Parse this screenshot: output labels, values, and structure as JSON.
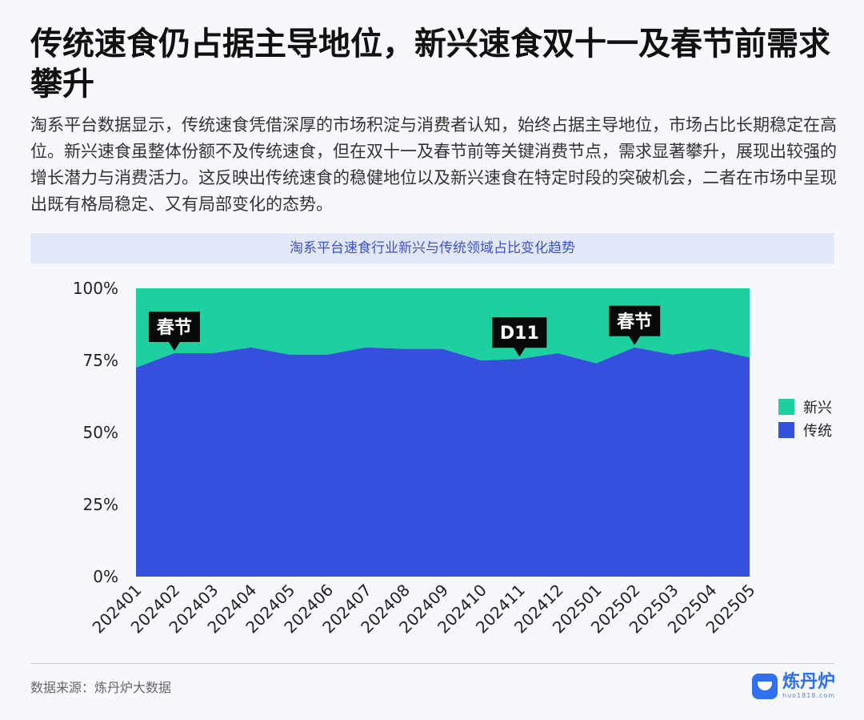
{
  "page": {
    "title": "传统速食仍占据主导地位，新兴速食双十一及春节前需求攀升",
    "description": "淘系平台数据显示，传统速食凭借深厚的市场积淀与消费者认知，始终占据主导地位，市场占比长期稳定在高位。新兴速食虽整体份额不及传统速食，但在双十一及春节前等关键消费节点，需求显著攀升，展现出较强的增长潜力与消费活力。这反映出传统速食的稳健地位以及新兴速食在特定时段的突破机会，二者在市场中呈现出既有格局稳定、又有局部变化的态势。",
    "source": "数据来源：炼丹炉大数据",
    "logo_name": "炼丹炉",
    "logo_url": "huo1818.com"
  },
  "chart_data": {
    "type": "area",
    "stacked": true,
    "percent": true,
    "title": "淘系平台速食行业新兴与传统领域占比变化趋势",
    "x": [
      "202401",
      "202402",
      "202403",
      "202404",
      "202405",
      "202406",
      "202407",
      "202408",
      "202409",
      "202410",
      "202411",
      "202412",
      "202501",
      "202502",
      "202503",
      "202504",
      "202505"
    ],
    "y_ticks": [
      "0%",
      "25%",
      "50%",
      "75%",
      "100%"
    ],
    "ylim": [
      0,
      100
    ],
    "series": [
      {
        "name": "传统",
        "color": "#3650de",
        "values": [
          72.5,
          77.5,
          77.5,
          79.5,
          77,
          77,
          79.5,
          79,
          79,
          75,
          75.5,
          77.5,
          74,
          79.5,
          77,
          79,
          76
        ]
      },
      {
        "name": "新兴",
        "color": "#1ecfa0",
        "values": [
          27.5,
          22.5,
          22.5,
          20.5,
          23,
          23,
          20.5,
          21,
          21,
          25,
          24.5,
          22.5,
          26,
          20.5,
          23,
          21,
          24
        ]
      }
    ],
    "legend": {
      "position": "right",
      "items": [
        "新兴",
        "传统"
      ]
    },
    "annotations": [
      {
        "text": "春节",
        "x": "202402"
      },
      {
        "text": "D11",
        "x": "202411"
      },
      {
        "text": "春节",
        "x": "202502"
      }
    ]
  }
}
